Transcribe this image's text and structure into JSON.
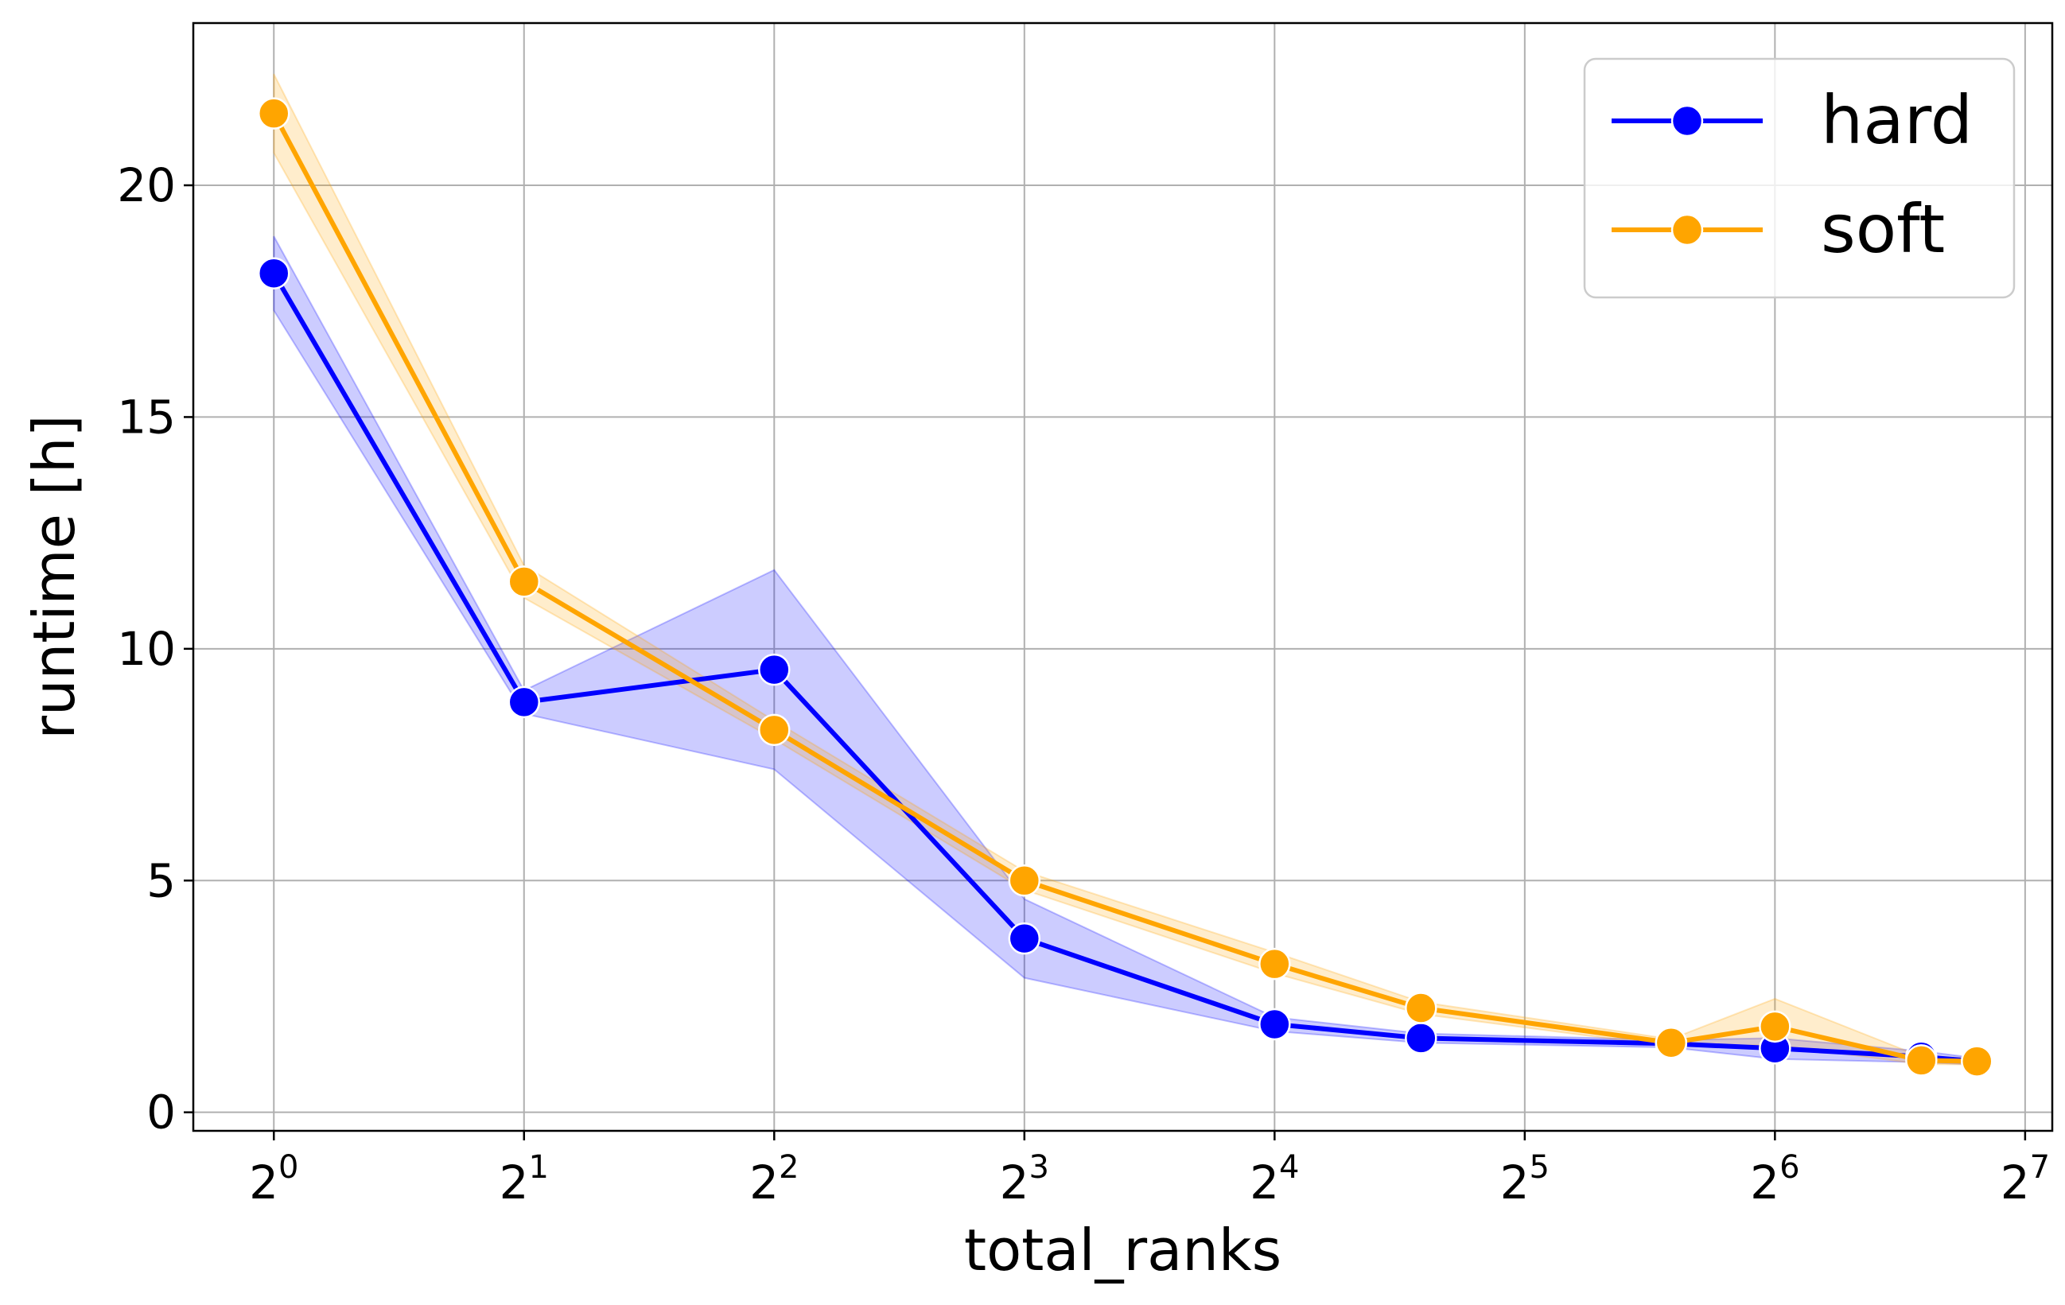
{
  "chart_data": {
    "type": "line",
    "title": "",
    "xlabel": "total_ranks",
    "ylabel": "runtime [h]",
    "x_scale": "log2",
    "xlim": [
      0.8,
      138
    ],
    "ylim": [
      -0.4,
      23.5
    ],
    "grid": true,
    "legend_position": "top-right",
    "x_ticks": [
      {
        "value": 1,
        "base": "2",
        "exp": "0"
      },
      {
        "value": 2,
        "base": "2",
        "exp": "1"
      },
      {
        "value": 4,
        "base": "2",
        "exp": "2"
      },
      {
        "value": 8,
        "base": "2",
        "exp": "3"
      },
      {
        "value": 16,
        "base": "2",
        "exp": "4"
      },
      {
        "value": 32,
        "base": "2",
        "exp": "5"
      },
      {
        "value": 64,
        "base": "2",
        "exp": "6"
      },
      {
        "value": 128,
        "base": "2",
        "exp": "7"
      }
    ],
    "y_ticks": [
      {
        "value": 0,
        "label": "0"
      },
      {
        "value": 5,
        "label": "5"
      },
      {
        "value": 10,
        "label": "10"
      },
      {
        "value": 15,
        "label": "15"
      },
      {
        "value": 20,
        "label": "20"
      }
    ],
    "series": [
      {
        "name": "hard",
        "color": "#0000ff",
        "band_color": "#0000ff",
        "band_opacity": 0.2,
        "points": [
          {
            "x": 1,
            "y": 18.1,
            "lo": 17.3,
            "hi": 18.9
          },
          {
            "x": 2,
            "y": 8.85,
            "lo": 8.6,
            "hi": 9.1
          },
          {
            "x": 4,
            "y": 9.55,
            "lo": 7.4,
            "hi": 11.7
          },
          {
            "x": 8,
            "y": 3.75,
            "lo": 2.9,
            "hi": 4.6
          },
          {
            "x": 16,
            "y": 1.9,
            "lo": 1.75,
            "hi": 2.05
          },
          {
            "x": 24,
            "y": 1.6,
            "lo": 1.5,
            "hi": 1.7
          },
          {
            "x": 48,
            "y": 1.48,
            "lo": 1.4,
            "hi": 1.56
          },
          {
            "x": 64,
            "y": 1.38,
            "lo": 1.15,
            "hi": 1.6
          },
          {
            "x": 96,
            "y": 1.2,
            "lo": 1.08,
            "hi": 1.32
          },
          {
            "x": 112,
            "y": 1.1,
            "lo": 1.03,
            "hi": 1.17
          }
        ]
      },
      {
        "name": "soft",
        "color": "#ffa500",
        "band_color": "#ffa500",
        "band_opacity": 0.2,
        "points": [
          {
            "x": 1,
            "y": 21.55,
            "lo": 20.7,
            "hi": 22.4
          },
          {
            "x": 2,
            "y": 11.45,
            "lo": 11.1,
            "hi": 11.8
          },
          {
            "x": 4,
            "y": 8.25,
            "lo": 8.05,
            "hi": 8.45
          },
          {
            "x": 8,
            "y": 5.0,
            "lo": 4.8,
            "hi": 5.2
          },
          {
            "x": 16,
            "y": 3.2,
            "lo": 3.0,
            "hi": 3.45
          },
          {
            "x": 24,
            "y": 2.25,
            "lo": 2.12,
            "hi": 2.38
          },
          {
            "x": 48,
            "y": 1.5,
            "lo": 1.42,
            "hi": 1.58
          },
          {
            "x": 64,
            "y": 1.85,
            "lo": 1.45,
            "hi": 2.45
          },
          {
            "x": 96,
            "y": 1.12,
            "lo": 1.04,
            "hi": 1.2
          },
          {
            "x": 112,
            "y": 1.1,
            "lo": 1.03,
            "hi": 1.17
          }
        ]
      }
    ]
  }
}
